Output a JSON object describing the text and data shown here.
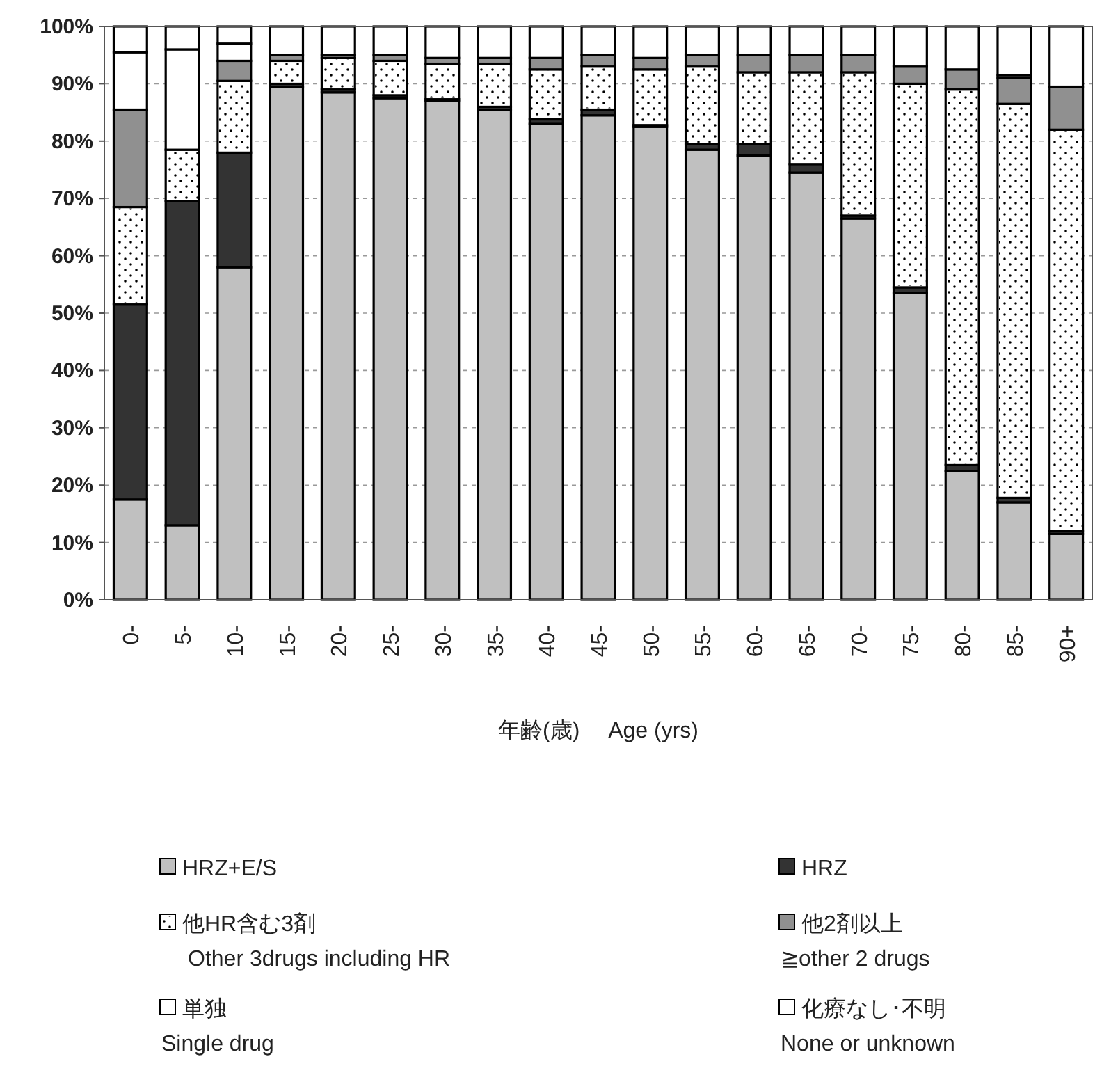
{
  "chart_data": {
    "type": "bar",
    "stacked": true,
    "categories": [
      "0-",
      "5-",
      "10-",
      "15-",
      "20-",
      "25-",
      "30-",
      "35-",
      "40-",
      "45-",
      "50-",
      "55-",
      "60-",
      "65-",
      "70-",
      "75-",
      "80-",
      "85-",
      "90+"
    ],
    "xlabel": "年齢(歳)　 Age (yrs)",
    "ylim": [
      0,
      100
    ],
    "yticks": [
      {
        "value": 0,
        "label": "0%"
      },
      {
        "value": 10,
        "label": "10%"
      },
      {
        "value": 20,
        "label": "20%"
      },
      {
        "value": 30,
        "label": "30%"
      },
      {
        "value": 40,
        "label": "40%"
      },
      {
        "value": 50,
        "label": "50%"
      },
      {
        "value": 60,
        "label": "60%"
      },
      {
        "value": 70,
        "label": "70%"
      },
      {
        "value": 80,
        "label": "80%"
      },
      {
        "value": 90,
        "label": "90%"
      },
      {
        "value": 100,
        "label": "100%"
      }
    ],
    "grid": "y",
    "legend": "bottom",
    "series": [
      {
        "name": "HRZ+E/S",
        "color": "#c0c0c0",
        "values": [
          17.5,
          13,
          58,
          89.5,
          88.5,
          87.5,
          87,
          85.5,
          83,
          84.5,
          82.5,
          78.5,
          77.5,
          74.5,
          66.5,
          53.5,
          22.5,
          17,
          11.5
        ]
      },
      {
        "name": "HRZ",
        "color": "#333333",
        "values": [
          34,
          56.5,
          20,
          0.5,
          0.5,
          0.5,
          0.3,
          0.5,
          0.8,
          1,
          0.3,
          1,
          2,
          1.5,
          0.5,
          1,
          1,
          0.8,
          0.5
        ]
      },
      {
        "name": "他HR含む3剤\nOther 3drugs including HR",
        "color": "#ffffff",
        "values": [
          17,
          9,
          12.5,
          4,
          5.5,
          6,
          6.2,
          7.5,
          8.7,
          7.5,
          9.7,
          13.5,
          12.5,
          16,
          25,
          35.5,
          65.5,
          68.7,
          70
        ]
      },
      {
        "name": "他2剤以上\n≧other 2 drugs",
        "color": "#909090",
        "values": [
          17,
          0,
          3.5,
          1,
          0.5,
          1,
          1,
          1,
          2,
          2,
          2,
          2,
          3,
          3,
          3,
          3,
          3.5,
          4.5,
          7.5
        ]
      },
      {
        "name": "単独\nSingle drug",
        "color": "#ffffff",
        "values": [
          10,
          17.5,
          3,
          0,
          0,
          0,
          0,
          0,
          0,
          0,
          0,
          0,
          0,
          0,
          0,
          0,
          0,
          0.5,
          0
        ]
      },
      {
        "name": "化療なし･不明\nNone or unknown",
        "color": "#ffffff",
        "values": [
          4.5,
          4,
          3,
          5,
          5,
          5,
          5.5,
          5.5,
          5.5,
          5,
          5.5,
          5,
          5,
          5,
          5,
          7,
          7.5,
          8.5,
          10.5
        ]
      }
    ]
  }
}
